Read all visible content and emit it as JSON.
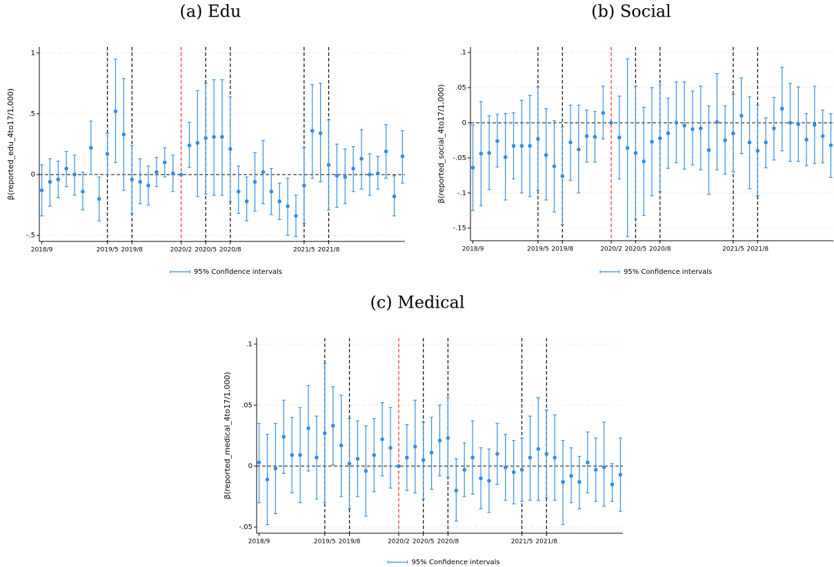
{
  "chart_data": [
    {
      "type": "errorbar",
      "title": "(a) Edu",
      "ylabel": "β(reported_edu_4to17/1,000)",
      "categories": [
        "2018/9",
        null,
        null,
        null,
        null,
        null,
        null,
        null,
        "2019/5",
        null,
        null,
        "2019/8",
        null,
        null,
        null,
        null,
        null,
        "2020/2",
        null,
        null,
        "2020/5",
        null,
        null,
        "2020/8",
        null,
        null,
        null,
        null,
        null,
        null,
        null,
        null,
        "2021/5",
        null,
        null,
        "2021/8",
        null,
        null,
        null,
        null,
        null,
        null,
        null,
        null,
        null
      ],
      "series": [
        {
          "name": "95% Confidence intervals",
          "color": "#2e8ee6",
          "values": [
            -0.13,
            -0.06,
            -0.04,
            0.05,
            0,
            -0.14,
            0.22,
            -0.2,
            0.17,
            0.52,
            0.33,
            -0.04,
            -0.06,
            -0.09,
            0.02,
            0.1,
            0.01,
            0,
            0.24,
            0.26,
            0.3,
            0.31,
            0.31,
            0.21,
            -0.14,
            -0.22,
            -0.06,
            0.02,
            -0.14,
            -0.22,
            -0.26,
            -0.34,
            -0.09,
            0.36,
            0.34,
            0.08,
            -0.01,
            -0.02,
            0.05,
            0.13,
            0,
            0.01,
            0.19,
            -0.18,
            0.15
          ],
          "lower": [
            -0.34,
            -0.26,
            -0.19,
            -0.1,
            -0.17,
            -0.29,
            0,
            -0.38,
            0,
            0.1,
            -0.13,
            -0.32,
            -0.24,
            -0.25,
            -0.1,
            -0.02,
            -0.14,
            0,
            0.06,
            -0.18,
            -0.16,
            -0.17,
            -0.17,
            -0.22,
            -0.32,
            -0.38,
            -0.3,
            -0.24,
            -0.33,
            -0.37,
            -0.5,
            -0.51,
            -0.4,
            -0.03,
            -0.06,
            -0.29,
            -0.27,
            -0.24,
            -0.14,
            -0.12,
            -0.17,
            -0.12,
            -0.03,
            -0.34,
            -0.07
          ],
          "upper": [
            0.08,
            0.13,
            0.11,
            0.19,
            0.16,
            0.02,
            0.44,
            -0.02,
            0.34,
            0.95,
            0.79,
            0.24,
            0.13,
            0.07,
            0.14,
            0.22,
            0.16,
            0,
            0.43,
            0.69,
            0.75,
            0.78,
            0.78,
            0.64,
            0.07,
            -0.02,
            0.18,
            0.28,
            0.05,
            -0.07,
            -0.03,
            -0.17,
            0.22,
            0.74,
            0.75,
            0.45,
            0.25,
            0.21,
            0.23,
            0.37,
            0.17,
            0.15,
            0.41,
            -0.01,
            0.36
          ]
        }
      ],
      "ylim": [
        -0.55,
        1.05
      ],
      "yticks": [
        {
          "value": -0.5,
          "label": "-.5"
        },
        0,
        {
          "value": 0.5,
          "label": ".5"
        },
        1
      ],
      "grid": true,
      "hline": 0,
      "vlines": [
        {
          "category": "2019/5",
          "color": "#000000"
        },
        {
          "category": "2019/8",
          "color": "#000000"
        },
        {
          "category": "2020/2",
          "color": "#e0302a"
        },
        {
          "category": "2020/5",
          "color": "#000000"
        },
        {
          "category": "2020/8",
          "color": "#000000"
        },
        {
          "category": "2021/5",
          "color": "#000000"
        },
        {
          "category": "2021/8",
          "color": "#000000"
        }
      ]
    },
    {
      "type": "errorbar",
      "title": "(b) Social",
      "ylabel": "β(reported_social_4to17/1,000)",
      "categories": [
        "2018/9",
        null,
        null,
        null,
        null,
        null,
        null,
        null,
        "2019/5",
        null,
        null,
        "2019/8",
        null,
        null,
        null,
        null,
        null,
        "2020/2",
        null,
        null,
        "2020/5",
        null,
        null,
        "2020/8",
        null,
        null,
        null,
        null,
        null,
        null,
        null,
        null,
        "2021/5",
        null,
        null,
        "2021/8",
        null,
        null,
        null,
        null,
        null,
        null,
        null,
        null,
        null
      ],
      "series": [
        {
          "name": "95% Confidence intervals",
          "color": "#2e8ee6",
          "values": [
            -0.064,
            -0.044,
            -0.043,
            -0.026,
            -0.049,
            -0.033,
            -0.033,
            -0.033,
            -0.023,
            -0.046,
            -0.062,
            -0.076,
            -0.028,
            -0.038,
            -0.019,
            -0.02,
            0.014,
            0,
            -0.021,
            -0.036,
            -0.043,
            -0.055,
            -0.027,
            -0.022,
            -0.015,
            0,
            -0.004,
            -0.009,
            -0.008,
            -0.039,
            0.001,
            -0.025,
            -0.015,
            0.01,
            -0.028,
            -0.04,
            -0.028,
            -0.008,
            0.02,
            0,
            -0.002,
            -0.024,
            -0.003,
            -0.019,
            -0.032
          ],
          "lower": [
            -0.125,
            -0.118,
            -0.095,
            -0.063,
            -0.11,
            -0.08,
            -0.1,
            -0.105,
            -0.096,
            -0.11,
            -0.127,
            -0.145,
            -0.082,
            -0.1,
            -0.056,
            -0.056,
            -0.023,
            0,
            -0.08,
            -0.162,
            -0.137,
            -0.132,
            -0.104,
            -0.098,
            -0.065,
            -0.057,
            -0.066,
            -0.06,
            -0.067,
            -0.102,
            -0.067,
            -0.073,
            -0.07,
            -0.044,
            -0.094,
            -0.104,
            -0.064,
            -0.053,
            -0.04,
            -0.055,
            -0.055,
            -0.061,
            -0.058,
            -0.057,
            -0.078
          ],
          "upper": [
            -0.003,
            0.03,
            0.01,
            0.012,
            0.013,
            0.014,
            0.032,
            0.039,
            0.051,
            0.02,
            0.003,
            -0.006,
            0.025,
            0.025,
            0.018,
            0.016,
            0.052,
            0,
            0.038,
            0.091,
            0.052,
            0.022,
            0.05,
            0.054,
            0.035,
            0.058,
            0.058,
            0.045,
            0.052,
            0.024,
            0.07,
            0.024,
            0.04,
            0.064,
            0.037,
            0.025,
            0.007,
            0.036,
            0.079,
            0.056,
            0.051,
            0.013,
            0.052,
            0.018,
            0.013
          ]
        }
      ],
      "ylim": [
        -0.168,
        0.108
      ],
      "yticks": [
        {
          "value": -0.15,
          "label": "-.15"
        },
        {
          "value": -0.1,
          "label": "-.1"
        },
        {
          "value": -0.05,
          "label": "-.05"
        },
        0,
        {
          "value": 0.05,
          "label": ".05"
        },
        {
          "value": 0.1,
          "label": ".1"
        }
      ],
      "grid": true,
      "hline": 0,
      "vlines": [
        {
          "category": "2019/5",
          "color": "#000000"
        },
        {
          "category": "2019/8",
          "color": "#000000"
        },
        {
          "category": "2020/2",
          "color": "#e0302a"
        },
        {
          "category": "2020/5",
          "color": "#000000"
        },
        {
          "category": "2020/8",
          "color": "#000000"
        },
        {
          "category": "2021/5",
          "color": "#000000"
        },
        {
          "category": "2021/8",
          "color": "#000000"
        }
      ]
    },
    {
      "type": "errorbar",
      "title": "(c) Medical",
      "ylabel": "β(reported_medical_4to17/1,000)",
      "categories": [
        "2018/9",
        null,
        null,
        null,
        null,
        null,
        null,
        null,
        "2019/5",
        null,
        null,
        "2019/8",
        null,
        null,
        null,
        null,
        null,
        "2020/2",
        null,
        null,
        "2020/5",
        null,
        null,
        "2020/8",
        null,
        null,
        null,
        null,
        null,
        null,
        null,
        null,
        "2021/5",
        null,
        null,
        "2021/8",
        null,
        null,
        null,
        null,
        null,
        null,
        null,
        null,
        null
      ],
      "series": [
        {
          "name": "95% Confidence intervals",
          "color": "#2e8ee6",
          "values": [
            0.003,
            -0.011,
            -0.002,
            0.024,
            0.009,
            0.009,
            0.031,
            0.007,
            0.027,
            0.033,
            0.017,
            0.002,
            0.006,
            -0.004,
            0.009,
            0.022,
            0.015,
            0,
            0.007,
            0.016,
            0.005,
            0.011,
            0.021,
            0.023,
            -0.02,
            -0.003,
            0.007,
            -0.01,
            -0.012,
            0.01,
            -0.001,
            -0.005,
            -0.003,
            0.007,
            0.014,
            0.01,
            0.007,
            -0.013,
            -0.008,
            -0.013,
            0.003,
            -0.003,
            -0.001,
            -0.015,
            -0.007
          ],
          "lower": [
            -0.03,
            -0.048,
            -0.039,
            -0.006,
            -0.022,
            -0.03,
            -0.004,
            -0.027,
            -0.03,
            0.001,
            -0.025,
            -0.035,
            -0.025,
            -0.041,
            -0.021,
            -0.008,
            -0.018,
            0,
            -0.02,
            -0.022,
            -0.027,
            -0.019,
            -0.008,
            -0.009,
            -0.045,
            -0.025,
            -0.023,
            -0.035,
            -0.038,
            -0.015,
            -0.028,
            -0.031,
            -0.029,
            -0.028,
            -0.028,
            -0.026,
            -0.028,
            -0.048,
            -0.03,
            -0.035,
            -0.022,
            -0.029,
            -0.033,
            -0.029,
            -0.037
          ],
          "upper": [
            0.035,
            0.026,
            0.035,
            0.054,
            0.04,
            0.048,
            0.066,
            0.041,
            0.084,
            0.065,
            0.058,
            0.039,
            0.037,
            0.033,
            0.039,
            0.052,
            0.048,
            0,
            0.034,
            0.054,
            0.036,
            0.04,
            0.05,
            0.056,
            0.006,
            0.019,
            0.037,
            0.015,
            0.014,
            0.035,
            0.026,
            0.021,
            0.023,
            0.041,
            0.056,
            0.046,
            0.042,
            0.021,
            0.015,
            0.008,
            0.028,
            0.023,
            0.036,
            0.002,
            0.023
          ]
        }
      ],
      "ylim": [
        -0.055,
        0.105
      ],
      "yticks": [
        {
          "value": -0.05,
          "label": "-.05"
        },
        0,
        {
          "value": 0.05,
          "label": ".05"
        },
        {
          "value": 0.1,
          "label": ".1"
        }
      ],
      "grid": true,
      "hline": 0,
      "vlines": [
        {
          "category": "2019/5",
          "color": "#000000"
        },
        {
          "category": "2019/8",
          "color": "#000000"
        },
        {
          "category": "2020/2",
          "color": "#e0302a"
        },
        {
          "category": "2020/5",
          "color": "#000000"
        },
        {
          "category": "2020/8",
          "color": "#000000"
        },
        {
          "category": "2021/5",
          "color": "#000000"
        },
        {
          "category": "2021/8",
          "color": "#000000"
        }
      ]
    }
  ]
}
